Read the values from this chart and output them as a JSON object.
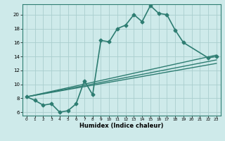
{
  "xlabel": "Humidex (Indice chaleur)",
  "xlim": [
    -0.5,
    23.5
  ],
  "ylim": [
    5.5,
    21.5
  ],
  "yticks": [
    6,
    8,
    10,
    12,
    14,
    16,
    18,
    20
  ],
  "xticks": [
    0,
    1,
    2,
    3,
    4,
    5,
    6,
    7,
    8,
    9,
    10,
    11,
    12,
    13,
    14,
    15,
    16,
    17,
    18,
    19,
    20,
    21,
    22,
    23
  ],
  "bg_color": "#ceeaea",
  "grid_color": "#aacece",
  "line_color": "#2e7d72",
  "series": [
    {
      "x": [
        0,
        1,
        2,
        3,
        4,
        5,
        6,
        7,
        8,
        9,
        10,
        11,
        12,
        13,
        14,
        15,
        16,
        17,
        18,
        19,
        22,
        23
      ],
      "y": [
        8.2,
        7.7,
        7.0,
        7.2,
        6.0,
        6.2,
        7.2,
        10.5,
        8.5,
        16.3,
        16.1,
        18.0,
        18.5,
        20.0,
        19.0,
        21.3,
        20.2,
        20.0,
        17.8,
        16.0,
        13.8,
        14.0
      ],
      "marker": "D",
      "markersize": 2.5,
      "linewidth": 1.2
    },
    {
      "x": [
        0,
        23
      ],
      "y": [
        8.2,
        14.2
      ],
      "marker": null,
      "linewidth": 1.0
    },
    {
      "x": [
        0,
        23
      ],
      "y": [
        8.2,
        13.5
      ],
      "marker": null,
      "linewidth": 1.0
    },
    {
      "x": [
        0,
        23
      ],
      "y": [
        8.2,
        13.0
      ],
      "marker": null,
      "linewidth": 1.0
    }
  ]
}
